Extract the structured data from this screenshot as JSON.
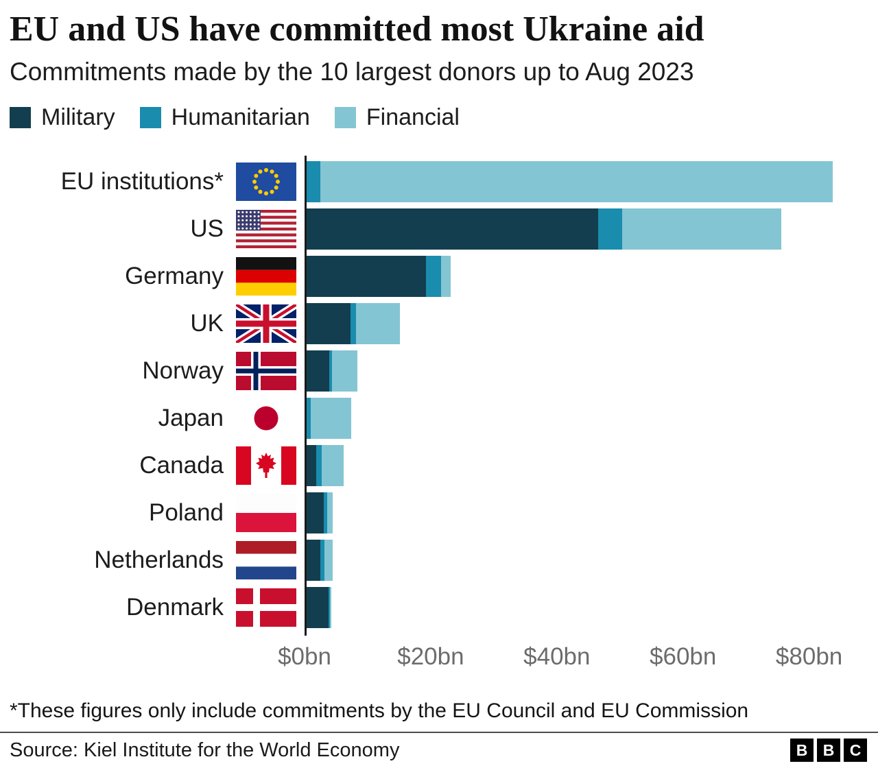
{
  "header": {
    "title": "EU and US have committed most Ukraine aid",
    "subtitle": "Commitments made by the 10 largest donors up to Aug 2023"
  },
  "legend": [
    {
      "label": "Military",
      "color": "#133e4f"
    },
    {
      "label": "Humanitarian",
      "color": "#1a8cad"
    },
    {
      "label": "Financial",
      "color": "#84c5d3"
    }
  ],
  "chart_data": {
    "type": "bar",
    "orientation": "horizontal",
    "stacked": true,
    "unit": "$bn",
    "title": "EU and US have committed most Ukraine aid",
    "subtitle": "Commitments made by the 10 largest donors up to Aug 2023",
    "categories": [
      "EU institutions*",
      "US",
      "Germany",
      "UK",
      "Norway",
      "Japan",
      "Canada",
      "Poland",
      "Netherlands",
      "Denmark"
    ],
    "flags": [
      "eu",
      "us",
      "de",
      "uk",
      "no",
      "jp",
      "ca",
      "pl",
      "nl",
      "dk"
    ],
    "series": [
      {
        "name": "Military",
        "color": "#133e4f",
        "values": [
          0,
          46.5,
          19.2,
          7.3,
          3.9,
          0,
          1.8,
          3.0,
          2.5,
          3.8
        ]
      },
      {
        "name": "Humanitarian",
        "color": "#1a8cad",
        "values": [
          2.5,
          3.9,
          2.4,
          0.9,
          0.5,
          1.0,
          0.9,
          0.6,
          0.6,
          0.2
        ]
      },
      {
        "name": "Financial",
        "color": "#84c5d3",
        "values": [
          81.2,
          25.2,
          1.6,
          6.9,
          4.0,
          6.4,
          3.5,
          0.9,
          1.4,
          0.3
        ]
      }
    ],
    "x_axis": {
      "ticks": [
        "$0bn",
        "$20bn",
        "$40bn",
        "$60bn",
        "$80bn"
      ],
      "tick_values": [
        0,
        20,
        40,
        60,
        80
      ],
      "max": 87,
      "grid": false
    },
    "legend_position": "top"
  },
  "footnote": "*These figures only include commitments by the EU Council and EU Commission",
  "source": "Source: Kiel Institute for the World Economy",
  "logo": {
    "letters": [
      "B",
      "B",
      "C"
    ]
  }
}
